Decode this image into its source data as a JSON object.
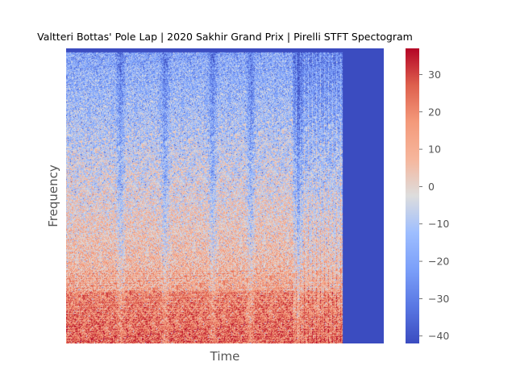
{
  "chart_data": {
    "type": "heatmap",
    "title": "Valtteri Bottas' Pole Lap | 2020 Sakhir Grand Prix | Pirelli STFT Spectogram",
    "xlabel": "Time",
    "ylabel": "Frequency",
    "colormap": "coolwarm",
    "colorbar": {
      "range": [
        -42,
        37
      ],
      "ticks": [
        30,
        20,
        10,
        0,
        -10,
        -20,
        -30,
        -40
      ],
      "tick_labels": [
        "30",
        "20",
        "10",
        "0",
        "−10",
        "−20",
        "−30",
        "−40"
      ]
    },
    "signal_extent_fraction_of_time_axis": 0.87,
    "fill_value_after_signal": -42,
    "low_energy_time_bands_fraction": [
      0.17,
      0.31,
      0.46,
      0.58,
      0.73
    ],
    "grid": false,
    "legend": "none"
  }
}
